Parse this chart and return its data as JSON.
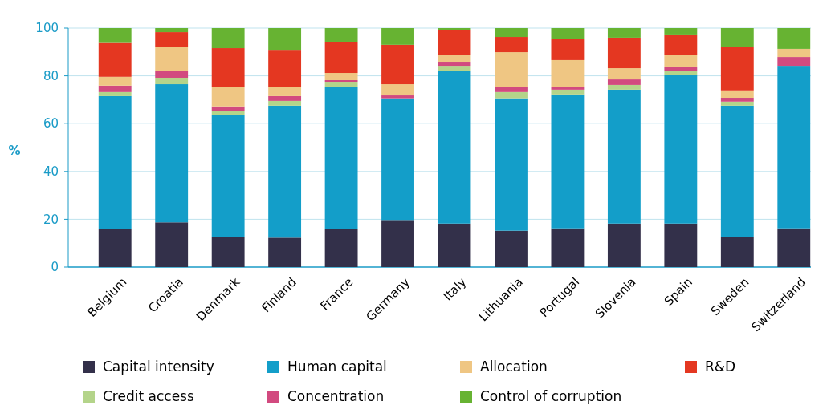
{
  "chart_data": {
    "type": "bar",
    "stacked": true,
    "ylabel": "%",
    "categories": [
      "Belgium",
      "Croatia",
      "Denmark",
      "Finland",
      "France",
      "Germany",
      "Italy",
      "Lithuania",
      "Portugal",
      "Slovenia",
      "Spain",
      "Sweden",
      "Switzerland"
    ],
    "series": [
      {
        "name": "Capital intensity",
        "color": "#33304a",
        "values": [
          16.0,
          18.7,
          12.6,
          12.3,
          16.0,
          19.7,
          18.2,
          15.2,
          16.2,
          18.2,
          18.2,
          12.5,
          16.2
        ]
      },
      {
        "name": "Human capital",
        "color": "#139ec9",
        "values": [
          55.5,
          57.8,
          50.9,
          55.2,
          59.5,
          50.9,
          64.0,
          55.4,
          56.0,
          56.0,
          62.0,
          55.0,
          68.0
        ]
      },
      {
        "name": "Credit access",
        "color": "#b4d48a",
        "values": [
          1.7,
          2.7,
          1.6,
          2.0,
          2.0,
          0,
          2.0,
          2.6,
          2.0,
          2.0,
          2.0,
          1.7,
          0
        ]
      },
      {
        "name": "Concentration",
        "color": "#d24a7f",
        "values": [
          2.7,
          3.0,
          2.1,
          2.0,
          0.7,
          1.2,
          1.7,
          2.3,
          1.3,
          2.3,
          1.7,
          1.6,
          3.7
        ]
      },
      {
        "name": "Allocation",
        "color": "#efc683",
        "values": [
          3.7,
          9.8,
          8.0,
          3.7,
          3.0,
          4.7,
          3.0,
          14.4,
          11.1,
          4.7,
          5.0,
          3.1,
          3.4
        ]
      },
      {
        "name": "R&D",
        "color": "#e43721",
        "values": [
          14.5,
          6.3,
          16.4,
          15.7,
          13.1,
          16.5,
          10.4,
          6.4,
          8.7,
          12.8,
          8.1,
          18.1,
          0
        ]
      },
      {
        "name": "Control of corruption",
        "color": "#67b332",
        "values": [
          5.9,
          1.7,
          8.4,
          9.1,
          5.7,
          7.0,
          0.7,
          3.7,
          4.7,
          4.0,
          3.0,
          8.0,
          8.7
        ]
      }
    ],
    "ylim": [
      0,
      100
    ],
    "yticks": [
      0,
      20,
      40,
      60,
      80,
      100
    ],
    "grid": "y",
    "legend": "bottom"
  }
}
